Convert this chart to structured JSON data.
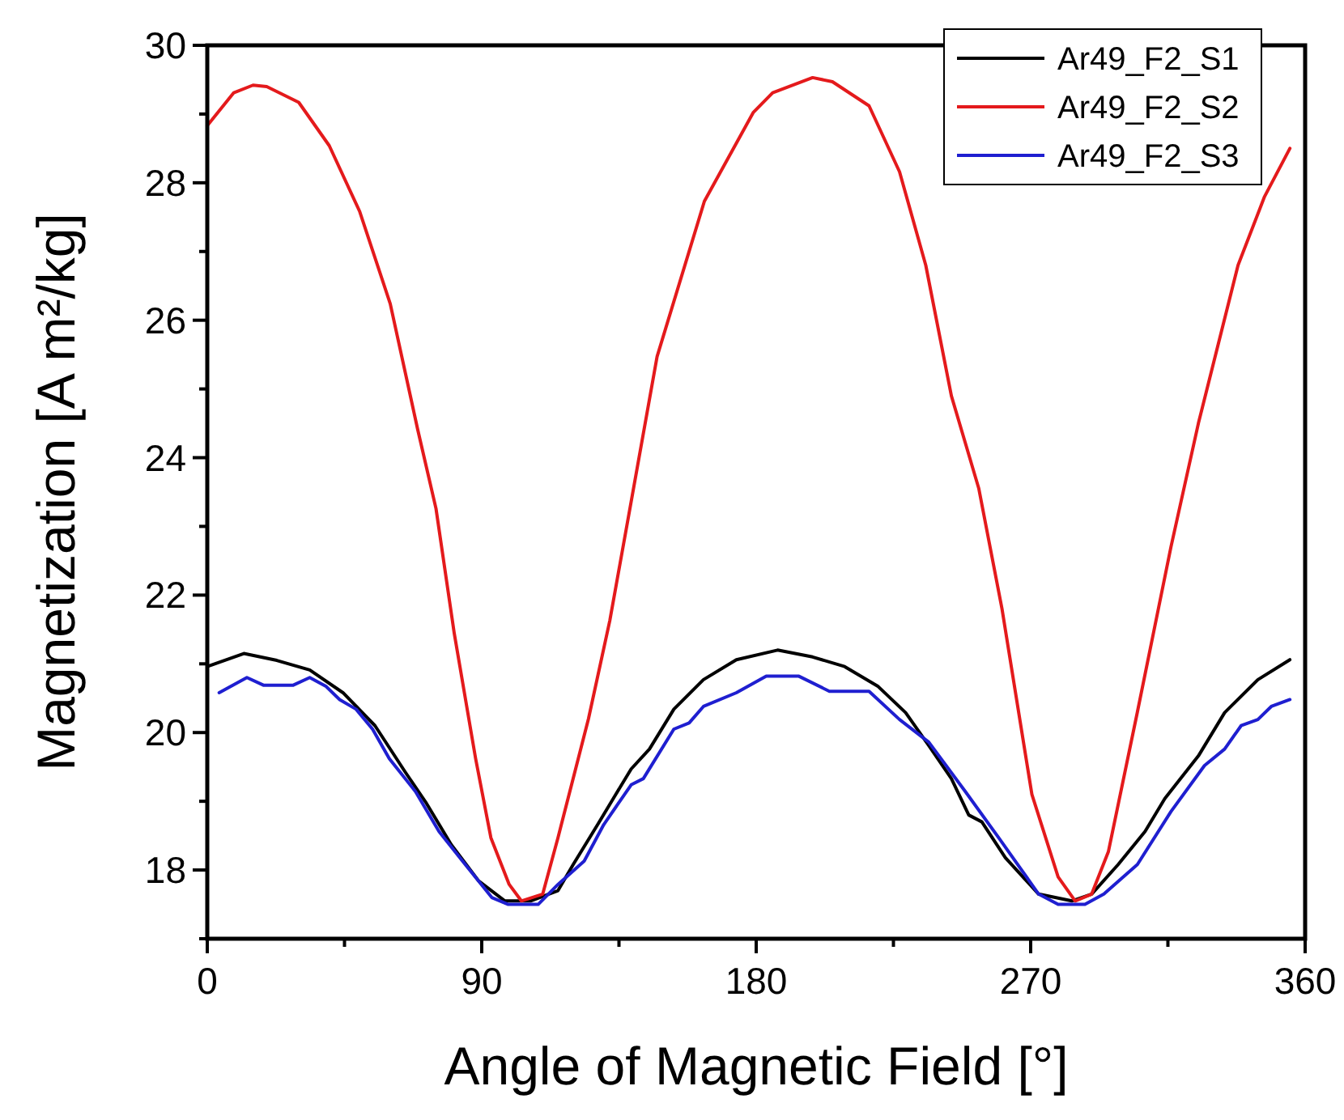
{
  "chart_data": {
    "type": "line",
    "xlabel": "Angle of Magnetic Field [°]",
    "ylabel": "Magnetization [A m²/kg]",
    "xlim": [
      0,
      360
    ],
    "xticks": [
      0,
      {
        "value": 45,
        "label": null
      },
      90,
      {
        "value": 135,
        "label": null
      },
      180,
      {
        "value": 225,
        "label": null
      },
      270,
      {
        "value": 315,
        "label": null
      },
      360
    ],
    "ylim": [
      17,
      30
    ],
    "yticks": [
      {
        "value": 17,
        "label": null
      },
      18,
      {
        "value": 19,
        "label": null
      },
      20,
      {
        "value": 21,
        "label": null
      },
      22,
      {
        "value": 23,
        "label": null
      },
      24,
      {
        "value": 25,
        "label": null
      },
      26,
      {
        "value": 27,
        "label": null
      },
      28,
      {
        "value": 29,
        "label": null
      },
      30
    ],
    "legend": "top right",
    "grid": false,
    "marker": "none",
    "line_style": "solid",
    "series": [
      {
        "name": "Ar49_F2_S1",
        "color": "#000000",
        "x": [
          0,
          12,
          22.8,
          33.6,
          44.5,
          55,
          65,
          71.6,
          80,
          89,
          97.6,
          106,
          115,
          120,
          128,
          134.5,
          139,
          145,
          153,
          162.7,
          173.5,
          187,
          198.5,
          209,
          220,
          229,
          236.6,
          244,
          249.7,
          254,
          261.7,
          272.6,
          283.5,
          290,
          298.7,
          307.5,
          314,
          325,
          333.6,
          344.5,
          355
        ],
        "values": [
          20.96,
          21.15,
          21.05,
          20.91,
          20.58,
          20.1,
          19.42,
          18.99,
          18.37,
          17.84,
          17.55,
          17.55,
          17.7,
          18.08,
          18.66,
          19.14,
          19.47,
          19.76,
          20.34,
          20.77,
          21.06,
          21.2,
          21.1,
          20.96,
          20.67,
          20.29,
          19.81,
          19.33,
          18.8,
          18.7,
          18.18,
          17.65,
          17.55,
          17.65,
          18.08,
          18.56,
          19.04,
          19.66,
          20.29,
          20.77,
          21.06
        ]
      },
      {
        "name": "Ar49_F2_S2",
        "color": "#e41a1c",
        "x": [
          0,
          8.7,
          15,
          19.5,
          30,
          40,
          50,
          60,
          69,
          75,
          81,
          88,
          93,
          99,
          103,
          110,
          115,
          125,
          132,
          139,
          147.5,
          163,
          179,
          185.4,
          198.5,
          205,
          217,
          227,
          235.6,
          244,
          253,
          260.6,
          270.4,
          279,
          284.6,
          290,
          295.5,
          305,
          316,
          325,
          338,
          346.7,
          355
        ],
        "values": [
          28.83,
          29.31,
          29.42,
          29.4,
          29.17,
          28.54,
          27.58,
          26.24,
          24.41,
          23.26,
          21.44,
          19.62,
          18.47,
          17.79,
          17.55,
          17.65,
          18.47,
          20.2,
          21.63,
          23.36,
          25.47,
          27.73,
          29.02,
          29.31,
          29.53,
          29.47,
          29.12,
          28.16,
          26.8,
          24.9,
          23.55,
          21.8,
          19.1,
          17.9,
          17.55,
          17.65,
          18.27,
          20.3,
          22.7,
          24.5,
          26.8,
          27.8,
          28.5
        ]
      },
      {
        "name": "Ar49_F2_S3",
        "color": "#1f1fd0",
        "x": [
          3.9,
          13,
          18.4,
          28.2,
          33.6,
          39,
          43.4,
          48.8,
          54.2,
          59.7,
          68.3,
          76,
          84.6,
          93.3,
          98.7,
          108.5,
          115,
          123.6,
          130,
          139,
          143,
          153,
          158,
          162.7,
          173.5,
          183.3,
          194,
          204,
          217,
          227,
          236.6,
          248.6,
          259.5,
          272.6,
          279,
          287.8,
          294,
          305,
          316,
          327,
          333.6,
          339,
          344.5,
          348.9,
          355
        ],
        "values": [
          20.58,
          20.8,
          20.69,
          20.69,
          20.8,
          20.67,
          20.48,
          20.34,
          20.05,
          19.62,
          19.14,
          18.56,
          18.08,
          17.6,
          17.5,
          17.5,
          17.79,
          18.13,
          18.66,
          19.24,
          19.33,
          20.05,
          20.14,
          20.38,
          20.58,
          20.82,
          20.82,
          20.6,
          20.6,
          20.19,
          19.86,
          19.14,
          18.47,
          17.65,
          17.5,
          17.5,
          17.65,
          18.08,
          18.85,
          19.52,
          19.76,
          20.1,
          20.19,
          20.38,
          20.48
        ]
      }
    ]
  }
}
